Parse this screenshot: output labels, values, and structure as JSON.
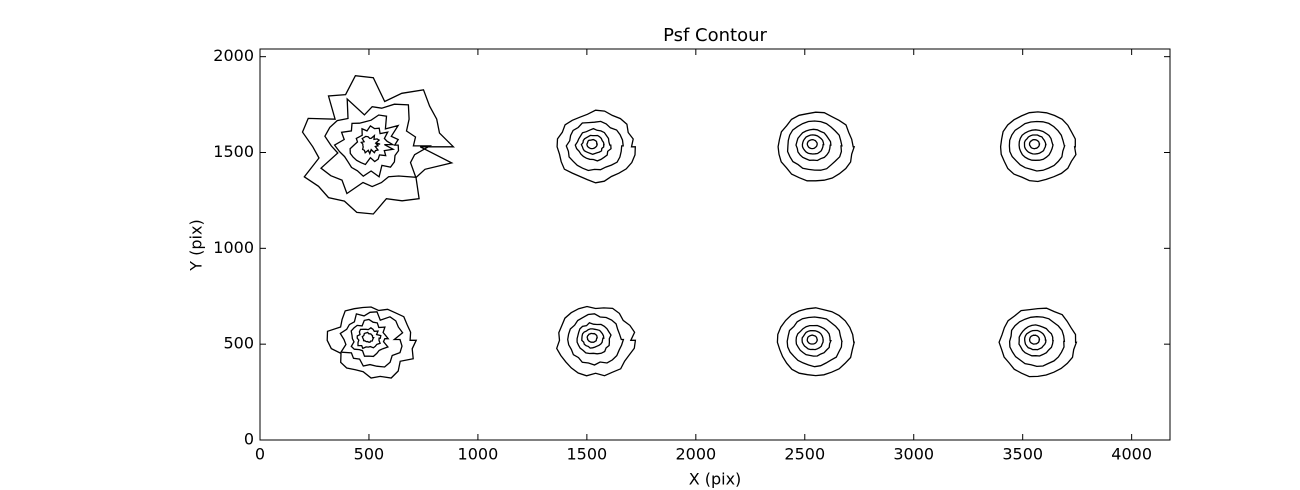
{
  "chart_data": {
    "type": "contour",
    "title": "Psf Contour",
    "x_label": "X (pix)",
    "y_label": "Y (pix)",
    "series": [
      {
        "name": null,
        "color": "#000000",
        "x": [
          520,
          1540,
          2550,
          3570,
          510,
          1540,
          2550,
          3570
        ],
        "values": [
          1530,
          1530,
          1530,
          1530,
          520,
          520,
          510,
          510
        ]
      }
    ],
    "xlim": [
      0,
      4176
    ],
    "ylim": [
      0,
      2040
    ],
    "xticks": [
      0,
      500,
      1000,
      1500,
      2000,
      2500,
      3000,
      3500,
      4000
    ],
    "yticks": [
      0,
      500,
      1000,
      1500,
      2000
    ]
  }
}
